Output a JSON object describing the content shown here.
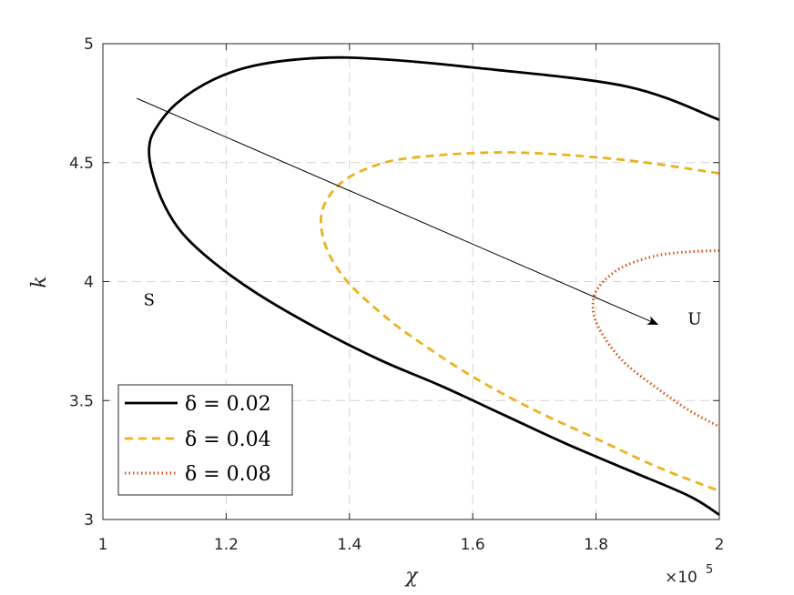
{
  "chart_data": {
    "type": "line",
    "title": "",
    "xlabel": "χ",
    "ylabel": "k",
    "x_exponent_label": "×10",
    "x_exponent_power": "5",
    "xlim": [
      1,
      2
    ],
    "ylim": [
      3,
      5
    ],
    "xticks": [
      1,
      1.2,
      1.4,
      1.6,
      1.8,
      2
    ],
    "xtick_labels": [
      "1",
      "1.2",
      "1.4",
      "1.6",
      "1.8",
      "2"
    ],
    "yticks": [
      3,
      3.5,
      4,
      4.5,
      5
    ],
    "ytick_labels": [
      "3",
      "3.5",
      "4",
      "4.5",
      "5"
    ],
    "grid": true,
    "legend_position": "bottom-left",
    "series": [
      {
        "name": "δ = 0.02",
        "color": "#000000",
        "style": "solid",
        "points": [
          [
            2.0,
            4.68
          ],
          [
            1.85,
            4.82
          ],
          [
            1.6,
            4.9
          ],
          [
            1.45,
            4.935
          ],
          [
            1.35,
            4.94
          ],
          [
            1.25,
            4.91
          ],
          [
            1.18,
            4.85
          ],
          [
            1.12,
            4.75
          ],
          [
            1.085,
            4.64
          ],
          [
            1.075,
            4.56
          ],
          [
            1.08,
            4.46
          ],
          [
            1.1,
            4.32
          ],
          [
            1.13,
            4.2
          ],
          [
            1.18,
            4.08
          ],
          [
            1.25,
            3.95
          ],
          [
            1.35,
            3.8
          ],
          [
            1.45,
            3.67
          ],
          [
            1.55,
            3.56
          ],
          [
            1.65,
            3.44
          ],
          [
            1.75,
            3.32
          ],
          [
            1.85,
            3.21
          ],
          [
            1.95,
            3.1
          ],
          [
            2.0,
            3.02
          ]
        ]
      },
      {
        "name": "δ = 0.04",
        "color": "#EDB120",
        "style": "dashed",
        "points": [
          [
            2.0,
            4.455
          ],
          [
            1.85,
            4.51
          ],
          [
            1.7,
            4.54
          ],
          [
            1.6,
            4.54
          ],
          [
            1.5,
            4.52
          ],
          [
            1.45,
            4.495
          ],
          [
            1.4,
            4.44
          ],
          [
            1.37,
            4.37
          ],
          [
            1.355,
            4.29
          ],
          [
            1.356,
            4.2
          ],
          [
            1.37,
            4.1
          ],
          [
            1.4,
            3.99
          ],
          [
            1.45,
            3.87
          ],
          [
            1.5,
            3.77
          ],
          [
            1.6,
            3.6
          ],
          [
            1.7,
            3.46
          ],
          [
            1.8,
            3.34
          ],
          [
            1.9,
            3.22
          ],
          [
            2.0,
            3.12
          ]
        ]
      },
      {
        "name": "δ = 0.08",
        "color": "#D95319",
        "style": "dotted",
        "points": [
          [
            2.0,
            4.13
          ],
          [
            1.95,
            4.125
          ],
          [
            1.9,
            4.11
          ],
          [
            1.85,
            4.07
          ],
          [
            1.82,
            4.02
          ],
          [
            1.8,
            3.96
          ],
          [
            1.795,
            3.9
          ],
          [
            1.8,
            3.83
          ],
          [
            1.82,
            3.74
          ],
          [
            1.85,
            3.65
          ],
          [
            1.9,
            3.55
          ],
          [
            1.95,
            3.46
          ],
          [
            2.0,
            3.39
          ]
        ]
      }
    ],
    "annotations": [
      {
        "text": "S",
        "x": 1.075,
        "y": 3.9
      },
      {
        "text": "U",
        "x": 1.96,
        "y": 3.82
      }
    ],
    "arrow": {
      "from": [
        1.055,
        4.77
      ],
      "to": [
        1.9,
        3.82
      ]
    }
  }
}
